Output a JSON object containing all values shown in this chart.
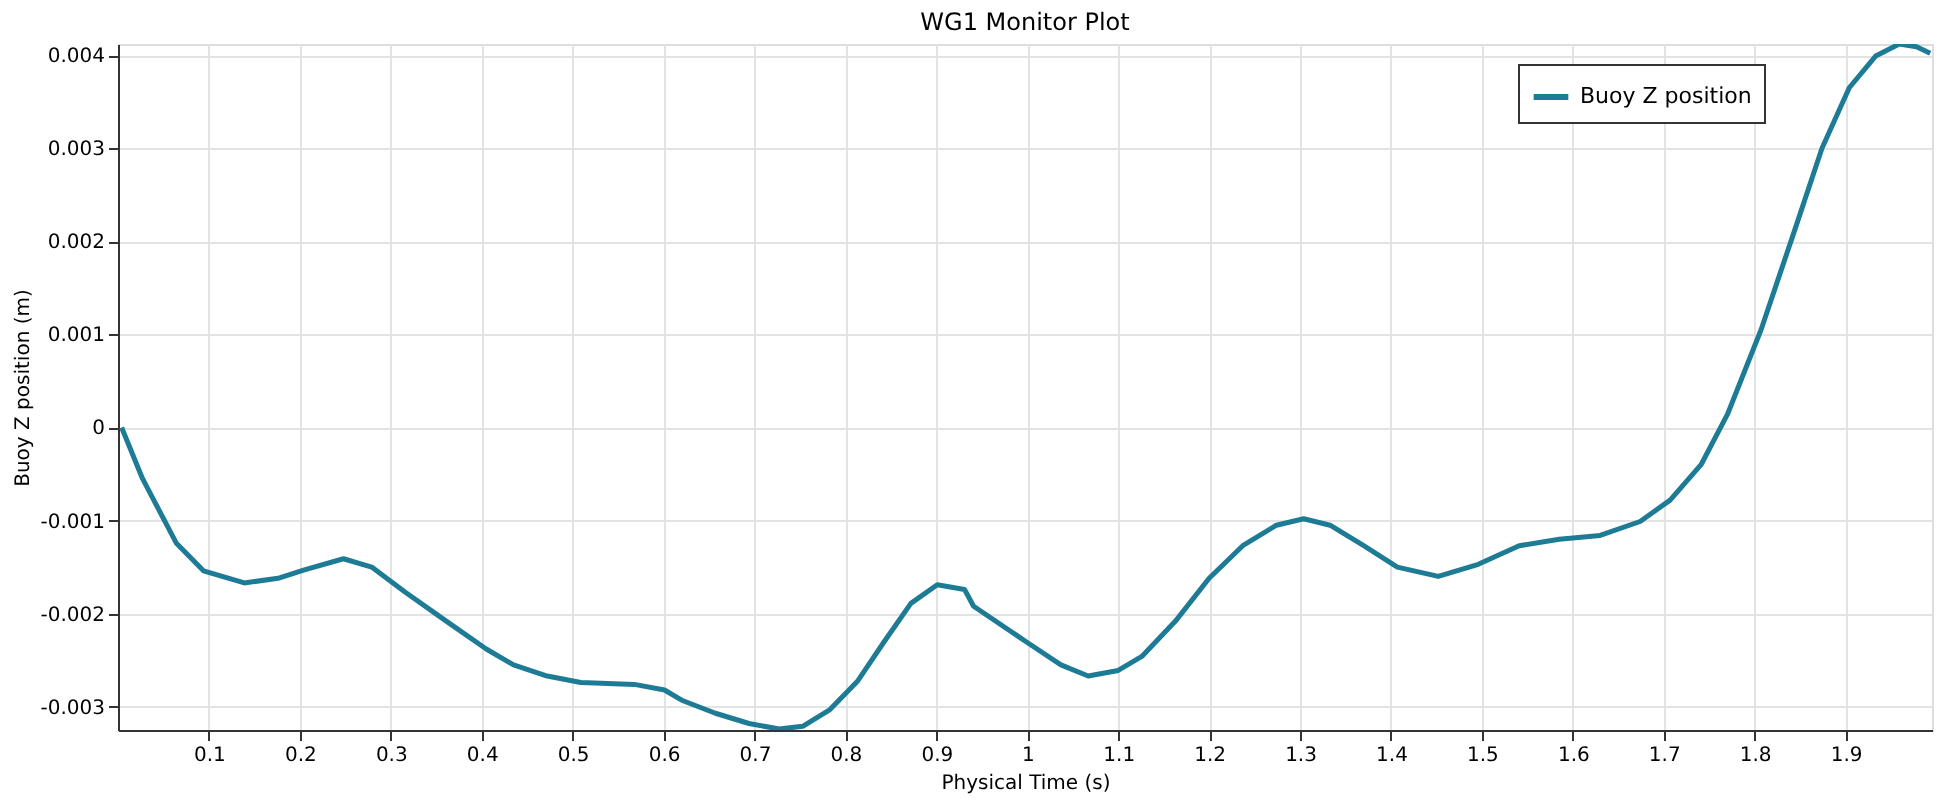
{
  "chart_data": {
    "type": "line",
    "title": "WG1 Monitor Plot",
    "xlabel": "Physical Time (s)",
    "ylabel": "Buoy Z position (m)",
    "xlim": [
      0,
      1.995
    ],
    "ylim": [
      -0.00325,
      0.00412
    ],
    "xticks": [
      0.1,
      0.2,
      0.3,
      0.4,
      0.5,
      0.6,
      0.7,
      0.8,
      0.9,
      1,
      1.1,
      1.2,
      1.3,
      1.4,
      1.5,
      1.6,
      1.7,
      1.8,
      1.9
    ],
    "yticks": [
      -0.003,
      -0.002,
      -0.001,
      0,
      0.001,
      0.002,
      0.003,
      0.004
    ],
    "grid": true,
    "legend": "top right",
    "marker": "none",
    "line_style": "solid",
    "series": [
      {
        "name": "Buoy Z position",
        "color": "#1d7b96",
        "x": [
          0.004,
          0.027,
          0.064,
          0.094,
          0.139,
          0.176,
          0.205,
          0.248,
          0.279,
          0.316,
          0.361,
          0.405,
          0.435,
          0.472,
          0.509,
          0.568,
          0.601,
          0.62,
          0.657,
          0.694,
          0.727,
          0.753,
          0.783,
          0.813,
          0.842,
          0.872,
          0.901,
          0.931,
          0.941,
          1.0,
          1.037,
          1.067,
          1.1,
          1.126,
          1.163,
          1.2,
          1.237,
          1.274,
          1.304,
          1.333,
          1.37,
          1.407,
          1.452,
          1.496,
          1.541,
          1.585,
          1.63,
          1.674,
          1.707,
          1.741,
          1.77,
          1.807,
          1.844,
          1.874,
          1.904,
          1.933,
          1.959,
          1.978,
          1.993
        ],
        "values": [
          0,
          -0.00055,
          -0.00124,
          -0.00154,
          -0.00167,
          -0.00162,
          -0.00153,
          -0.00141,
          -0.0015,
          -0.00177,
          -0.00208,
          -0.00238,
          -0.00255,
          -0.00267,
          -0.00274,
          -0.00276,
          -0.00282,
          -0.00293,
          -0.00307,
          -0.00318,
          -0.00324,
          -0.00321,
          -0.00303,
          -0.00273,
          -0.00231,
          -0.00189,
          -0.00169,
          -0.00174,
          -0.00192,
          -0.00231,
          -0.00255,
          -0.00267,
          -0.00261,
          -0.00246,
          -0.00208,
          -0.00162,
          -0.00127,
          -0.00105,
          -0.00098,
          -0.00105,
          -0.00127,
          -0.0015,
          -0.0016,
          -0.00147,
          -0.00127,
          -0.0012,
          -0.00116,
          -0.00101,
          -0.00078,
          -0.0004,
          0.00014,
          0.00105,
          0.00212,
          0.003,
          0.00365,
          0.00399,
          0.00412,
          0.00409,
          0.00402
        ]
      }
    ]
  }
}
